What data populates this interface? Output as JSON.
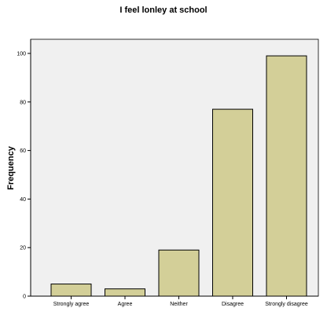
{
  "chart_data": {
    "type": "bar",
    "title": "I feel lonley at school",
    "xlabel": "",
    "ylabel": "Frequency",
    "categories": [
      "Strongly agree",
      "Agree",
      "Neither",
      "Disagree",
      "Strongly disagree"
    ],
    "values": [
      5,
      3,
      19,
      77,
      99
    ],
    "ylim": [
      0,
      100
    ],
    "yticks": [
      "0",
      "20",
      "40",
      "60",
      "80",
      "100"
    ],
    "grid": false,
    "legend": "none",
    "colors": {
      "bar_fill": "#d3cf98",
      "bar_stroke": "#000000",
      "plot_background": "#f0f0f0",
      "page_background": "#ffffff"
    }
  }
}
